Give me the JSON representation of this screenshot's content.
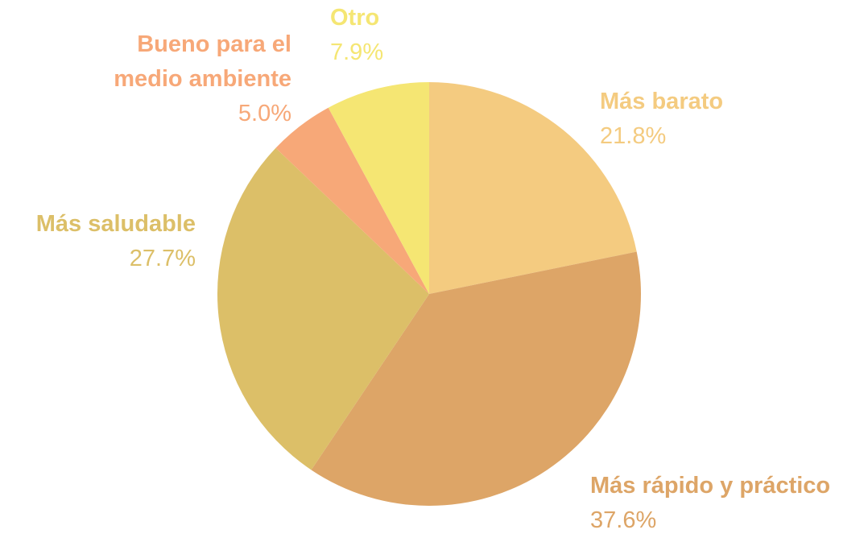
{
  "chart_data": {
    "type": "pie",
    "categories": [
      "Más barato",
      "Más rápido y práctico",
      "Más saludable",
      "Bueno para el medio ambiente",
      "Otro"
    ],
    "values": [
      21.8,
      37.6,
      27.7,
      5.0,
      7.9
    ],
    "value_labels": [
      "21.8%",
      "37.6%",
      "27.7%",
      "5.0%",
      "7.9%"
    ],
    "colors": [
      "#f4cb80",
      "#dda567",
      "#dcbf68",
      "#f7a878",
      "#f5e673"
    ]
  }
}
